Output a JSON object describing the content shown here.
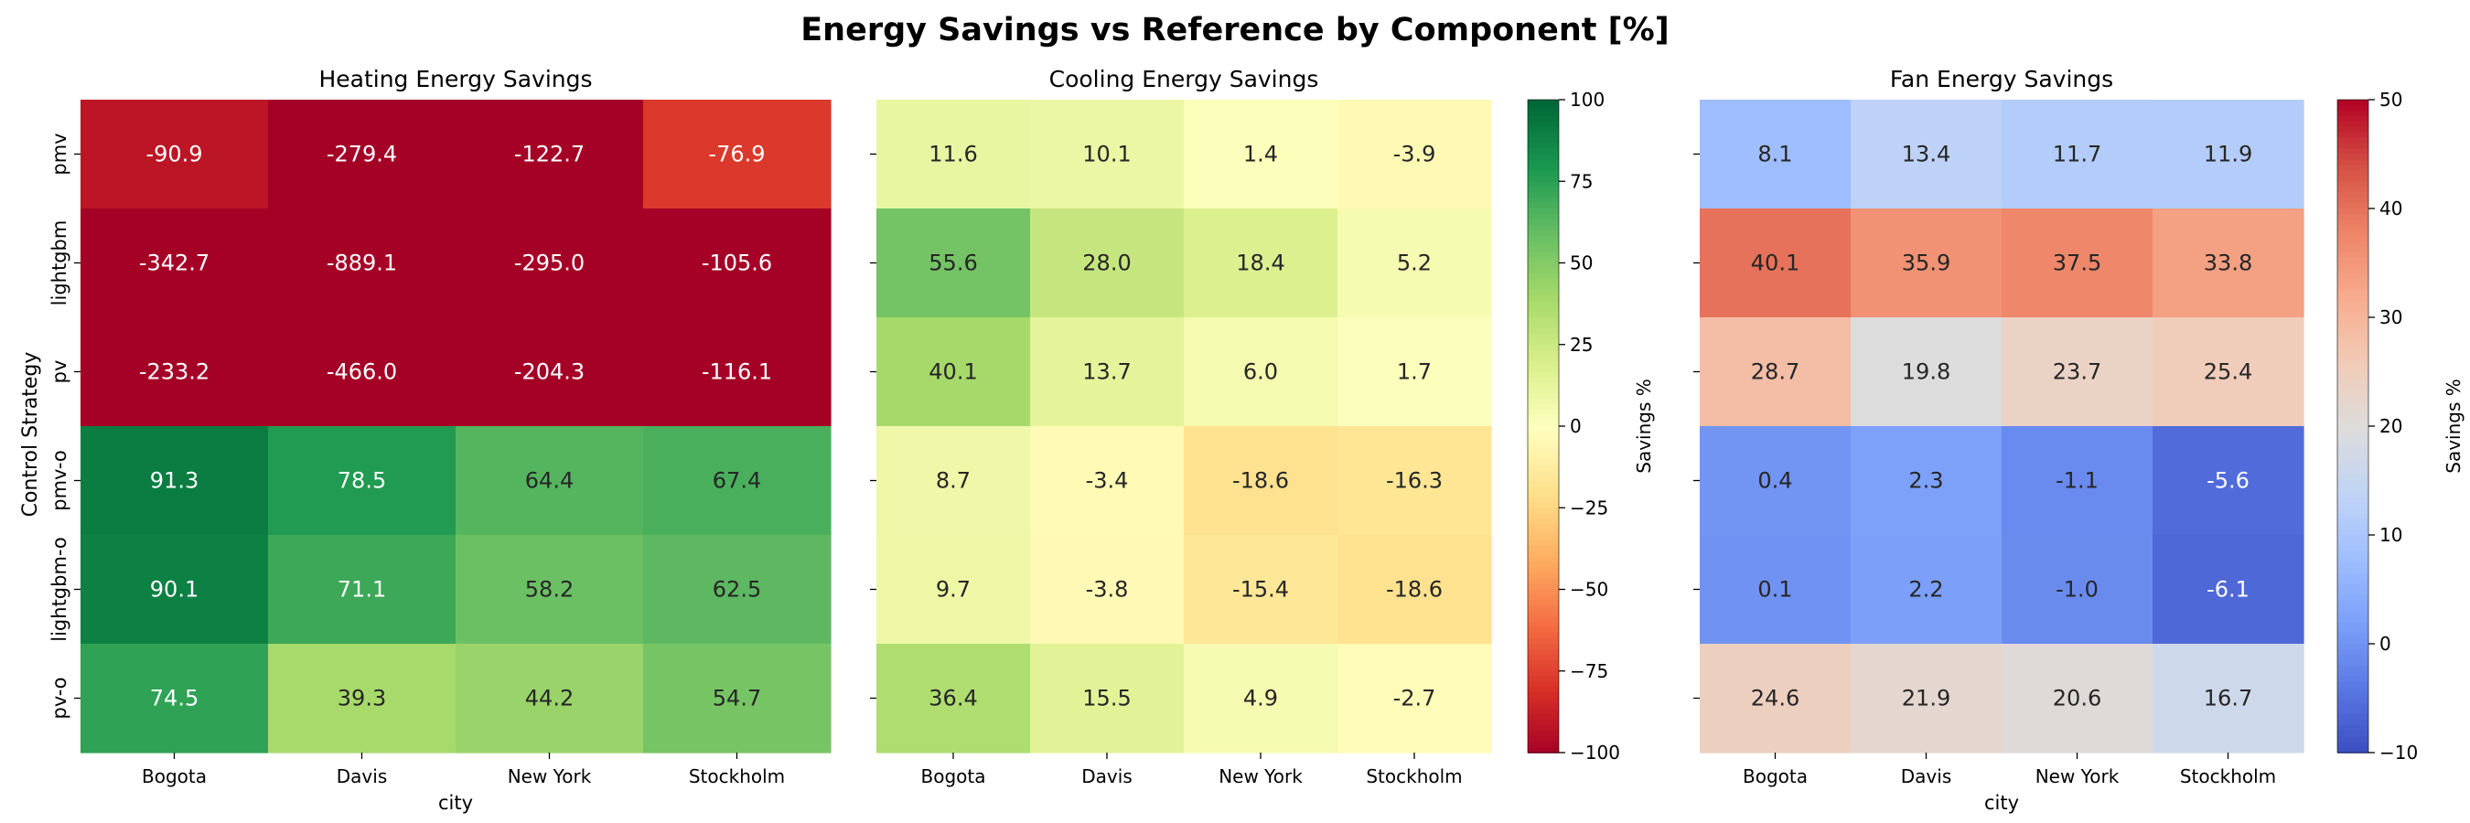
{
  "title": "Energy Savings vs Reference by Component [%]",
  "y_axis_label": "Control Strategy",
  "x_axis_label": "city",
  "colorbar_label": "Savings %",
  "chart_data": [
    {
      "type": "heatmap",
      "title": "Heating Energy Savings",
      "xlabel": "city",
      "ylabel": "Control Strategy",
      "x": [
        "Bogota",
        "Davis",
        "New York",
        "Stockholm"
      ],
      "y": [
        "pmv",
        "lightgbm",
        "pv",
        "pmv-o",
        "lightgbm-o",
        "pv-o"
      ],
      "values": [
        [
          -90.9,
          -279.4,
          -122.7,
          -76.9
        ],
        [
          -342.7,
          -889.1,
          -295.0,
          -105.6
        ],
        [
          -233.2,
          -466.0,
          -204.3,
          -116.1
        ],
        [
          91.3,
          78.5,
          64.4,
          67.4
        ],
        [
          90.1,
          71.1,
          58.2,
          62.5
        ],
        [
          74.5,
          39.3,
          44.2,
          54.7
        ]
      ],
      "colormap": "RdYlGn",
      "vmin": -100,
      "vmax": 100,
      "colorbar": null
    },
    {
      "type": "heatmap",
      "title": "Cooling Energy Savings",
      "xlabel": "",
      "ylabel": "",
      "x": [
        "Bogota",
        "Davis",
        "New York",
        "Stockholm"
      ],
      "y": [
        "pmv",
        "lightgbm",
        "pv",
        "pmv-o",
        "lightgbm-o",
        "pv-o"
      ],
      "values": [
        [
          11.6,
          10.1,
          1.4,
          -3.9
        ],
        [
          55.6,
          28.0,
          18.4,
          5.2
        ],
        [
          40.1,
          13.7,
          6.0,
          1.7
        ],
        [
          8.7,
          -3.4,
          -18.6,
          -16.3
        ],
        [
          9.7,
          -3.8,
          -15.4,
          -18.6
        ],
        [
          36.4,
          15.5,
          4.9,
          -2.7
        ]
      ],
      "colormap": "RdYlGn",
      "vmin": -100,
      "vmax": 100,
      "colorbar": {
        "label": "Savings %",
        "ticks": [
          -100,
          -75,
          -50,
          -25,
          0,
          25,
          50,
          75,
          100
        ]
      }
    },
    {
      "type": "heatmap",
      "title": "Fan Energy Savings",
      "xlabel": "city",
      "ylabel": "",
      "x": [
        "Bogota",
        "Davis",
        "New York",
        "Stockholm"
      ],
      "y": [
        "pmv",
        "lightgbm",
        "pv",
        "pmv-o",
        "lightgbm-o",
        "pv-o"
      ],
      "values": [
        [
          8.1,
          13.4,
          11.7,
          11.9
        ],
        [
          40.1,
          35.9,
          37.5,
          33.8
        ],
        [
          28.7,
          19.8,
          23.7,
          25.4
        ],
        [
          0.4,
          2.3,
          -1.1,
          -5.6
        ],
        [
          0.1,
          2.2,
          -1.0,
          -6.1
        ],
        [
          24.6,
          21.9,
          20.6,
          16.7
        ]
      ],
      "colormap": "coolwarm",
      "vmin": -10,
      "vmax": 50,
      "colorbar": {
        "label": "Savings %",
        "ticks": [
          -10,
          0,
          10,
          20,
          30,
          40,
          50
        ]
      }
    }
  ]
}
